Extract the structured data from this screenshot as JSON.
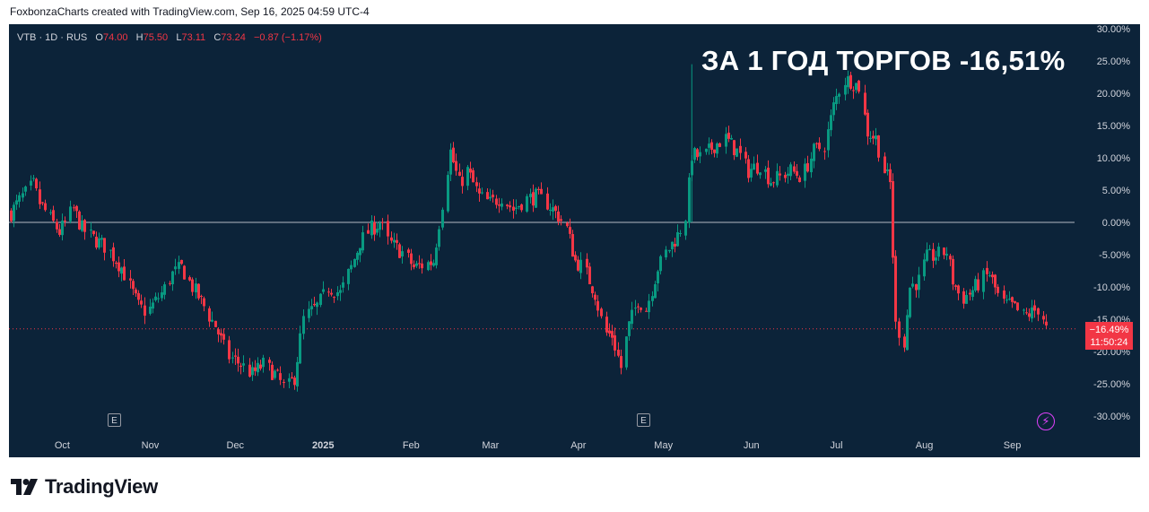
{
  "header": {
    "attribution": "FoxbonzaCharts created with TradingView.com, Sep 16, 2025 04:59 UTC-4"
  },
  "legend": {
    "symbol": "VTB · 1D · RUS",
    "o_label": "O",
    "o_value": "74.00",
    "h_label": "H",
    "h_value": "75.50",
    "l_label": "L",
    "l_value": "73.11",
    "c_label": "C",
    "c_value": "73.24",
    "change": "−0.87 (−1.17%)"
  },
  "annotation": {
    "headline": "ЗА 1 ГОД ТОРГОВ -16,51%"
  },
  "price_tag": {
    "value": "−16.49%",
    "countdown": "11:50:24"
  },
  "events": {
    "earnings_label": "E"
  },
  "footer": {
    "brand": "TradingView"
  },
  "colors": {
    "background": "#0c2339",
    "up": "#089981",
    "down": "#f23645",
    "text": "#d1d4dc",
    "zero_line": "#d1d4dc"
  },
  "chart_data": {
    "type": "candlestick",
    "title": "ЗА 1 ГОД ТОРГОВ -16,51%",
    "y_unit": "%",
    "ylim": [
      -32,
      30
    ],
    "y_ticks": [
      "30.00%",
      "25.00%",
      "20.00%",
      "15.00%",
      "10.00%",
      "5.00%",
      "0.00%",
      "-5.00%",
      "-10.00%",
      "-15.00%",
      "-20.00%",
      "-25.00%",
      "-30.00%"
    ],
    "y_tick_values": [
      30,
      25,
      20,
      15,
      10,
      5,
      0,
      -5,
      -10,
      -15,
      -20,
      -25,
      -30
    ],
    "x_ticks": [
      "Oct",
      "Nov",
      "Dec",
      "2025",
      "Feb",
      "Mar",
      "Apr",
      "May",
      "Jun",
      "Jul",
      "Aug",
      "Sep"
    ],
    "last_value": -16.49,
    "path": [
      [
        "2024-09-16",
        1.5
      ],
      [
        "2024-09-20",
        4.0
      ],
      [
        "2024-09-24",
        5.8
      ],
      [
        "2024-09-26",
        3.0
      ],
      [
        "2024-09-30",
        0.5
      ],
      [
        "2024-10-03",
        -1.5
      ],
      [
        "2024-10-08",
        2.0
      ],
      [
        "2024-10-11",
        -1.0
      ],
      [
        "2024-10-15",
        -2.5
      ],
      [
        "2024-10-20",
        -4.0
      ],
      [
        "2024-10-25",
        -7.0
      ],
      [
        "2024-10-31",
        -13.0
      ],
      [
        "2024-11-03",
        -14.0
      ],
      [
        "2024-11-08",
        -11.0
      ],
      [
        "2024-11-12",
        -8.0
      ],
      [
        "2024-11-15",
        -7.0
      ],
      [
        "2024-11-19",
        -10.0
      ],
      [
        "2024-11-23",
        -13.0
      ],
      [
        "2024-11-27",
        -16.0
      ],
      [
        "2024-12-01",
        -20.5
      ],
      [
        "2024-12-06",
        -22.0
      ],
      [
        "2024-12-10",
        -23.5
      ],
      [
        "2024-12-14",
        -22.0
      ],
      [
        "2024-12-18",
        -23.5
      ],
      [
        "2024-12-22",
        -26.0
      ],
      [
        "2024-12-25",
        -24.0
      ],
      [
        "2024-12-28",
        -15.0
      ],
      [
        "2025-01-02",
        -13.0
      ],
      [
        "2025-01-06",
        -10.0
      ],
      [
        "2025-01-10",
        -11.0
      ],
      [
        "2025-01-14",
        -7.0
      ],
      [
        "2025-01-17",
        -3.0
      ],
      [
        "2025-01-21",
        -1.0
      ],
      [
        "2025-01-24",
        0.0
      ],
      [
        "2025-01-27",
        -3.0
      ],
      [
        "2025-01-30",
        -4.0
      ],
      [
        "2025-02-02",
        -5.0
      ],
      [
        "2025-02-05",
        -7.0
      ],
      [
        "2025-02-09",
        -6.5
      ],
      [
        "2025-02-12",
        -6.0
      ],
      [
        "2025-02-15",
        3.0
      ],
      [
        "2025-02-18",
        11.0
      ],
      [
        "2025-02-21",
        6.0
      ],
      [
        "2025-02-24",
        8.0
      ],
      [
        "2025-02-28",
        4.0
      ],
      [
        "2025-03-04",
        3.0
      ],
      [
        "2025-03-08",
        4.0
      ],
      [
        "2025-03-12",
        2.0
      ],
      [
        "2025-03-16",
        3.5
      ],
      [
        "2025-03-20",
        4.0
      ],
      [
        "2025-03-24",
        3.0
      ],
      [
        "2025-03-28",
        1.0
      ],
      [
        "2025-03-31",
        -1.0
      ],
      [
        "2025-04-03",
        -6.0
      ],
      [
        "2025-04-06",
        -7.0
      ],
      [
        "2025-04-10",
        -11.0
      ],
      [
        "2025-04-13",
        -17.0
      ],
      [
        "2025-04-16",
        -17.5
      ],
      [
        "2025-04-19",
        -22.5
      ],
      [
        "2025-04-22",
        -16.0
      ],
      [
        "2025-04-25",
        -12.0
      ],
      [
        "2025-04-28",
        -13.5
      ],
      [
        "2025-05-02",
        -7.0
      ],
      [
        "2025-05-06",
        -4.0
      ],
      [
        "2025-05-09",
        -2.0
      ],
      [
        "2025-05-12",
        1.0
      ],
      [
        "2025-05-14",
        10.5
      ],
      [
        "2025-05-18",
        10.0
      ],
      [
        "2025-05-22",
        12.0
      ],
      [
        "2025-05-26",
        13.0
      ],
      [
        "2025-05-30",
        11.0
      ],
      [
        "2025-06-03",
        8.0
      ],
      [
        "2025-06-07",
        9.0
      ],
      [
        "2025-06-11",
        6.5
      ],
      [
        "2025-06-14",
        7.0
      ],
      [
        "2025-06-18",
        8.0
      ],
      [
        "2025-06-22",
        7.0
      ],
      [
        "2025-06-26",
        11.0
      ],
      [
        "2025-06-30",
        12.0
      ],
      [
        "2025-07-03",
        18.0
      ],
      [
        "2025-07-06",
        22.0
      ],
      [
        "2025-07-09",
        22.0
      ],
      [
        "2025-07-12",
        21.0
      ],
      [
        "2025-07-15",
        14.0
      ],
      [
        "2025-07-18",
        13.0
      ],
      [
        "2025-07-21",
        8.0
      ],
      [
        "2025-07-23",
        6.0
      ],
      [
        "2025-07-25",
        -16.0
      ],
      [
        "2025-07-28",
        -18.5
      ],
      [
        "2025-07-30",
        -10.0
      ],
      [
        "2025-08-02",
        -9.0
      ],
      [
        "2025-08-05",
        -5.5
      ],
      [
        "2025-08-09",
        -5.0
      ],
      [
        "2025-08-12",
        -4.5
      ],
      [
        "2025-08-14",
        -9.0
      ],
      [
        "2025-08-17",
        -12.0
      ],
      [
        "2025-08-20",
        -11.0
      ],
      [
        "2025-08-24",
        -9.0
      ],
      [
        "2025-08-27",
        -8.0
      ],
      [
        "2025-08-31",
        -12.5
      ],
      [
        "2025-09-04",
        -13.0
      ],
      [
        "2025-09-08",
        -14.5
      ],
      [
        "2025-09-11",
        -14.0
      ],
      [
        "2025-09-14",
        -13.0
      ],
      [
        "2025-09-16",
        -16.5
      ]
    ]
  }
}
